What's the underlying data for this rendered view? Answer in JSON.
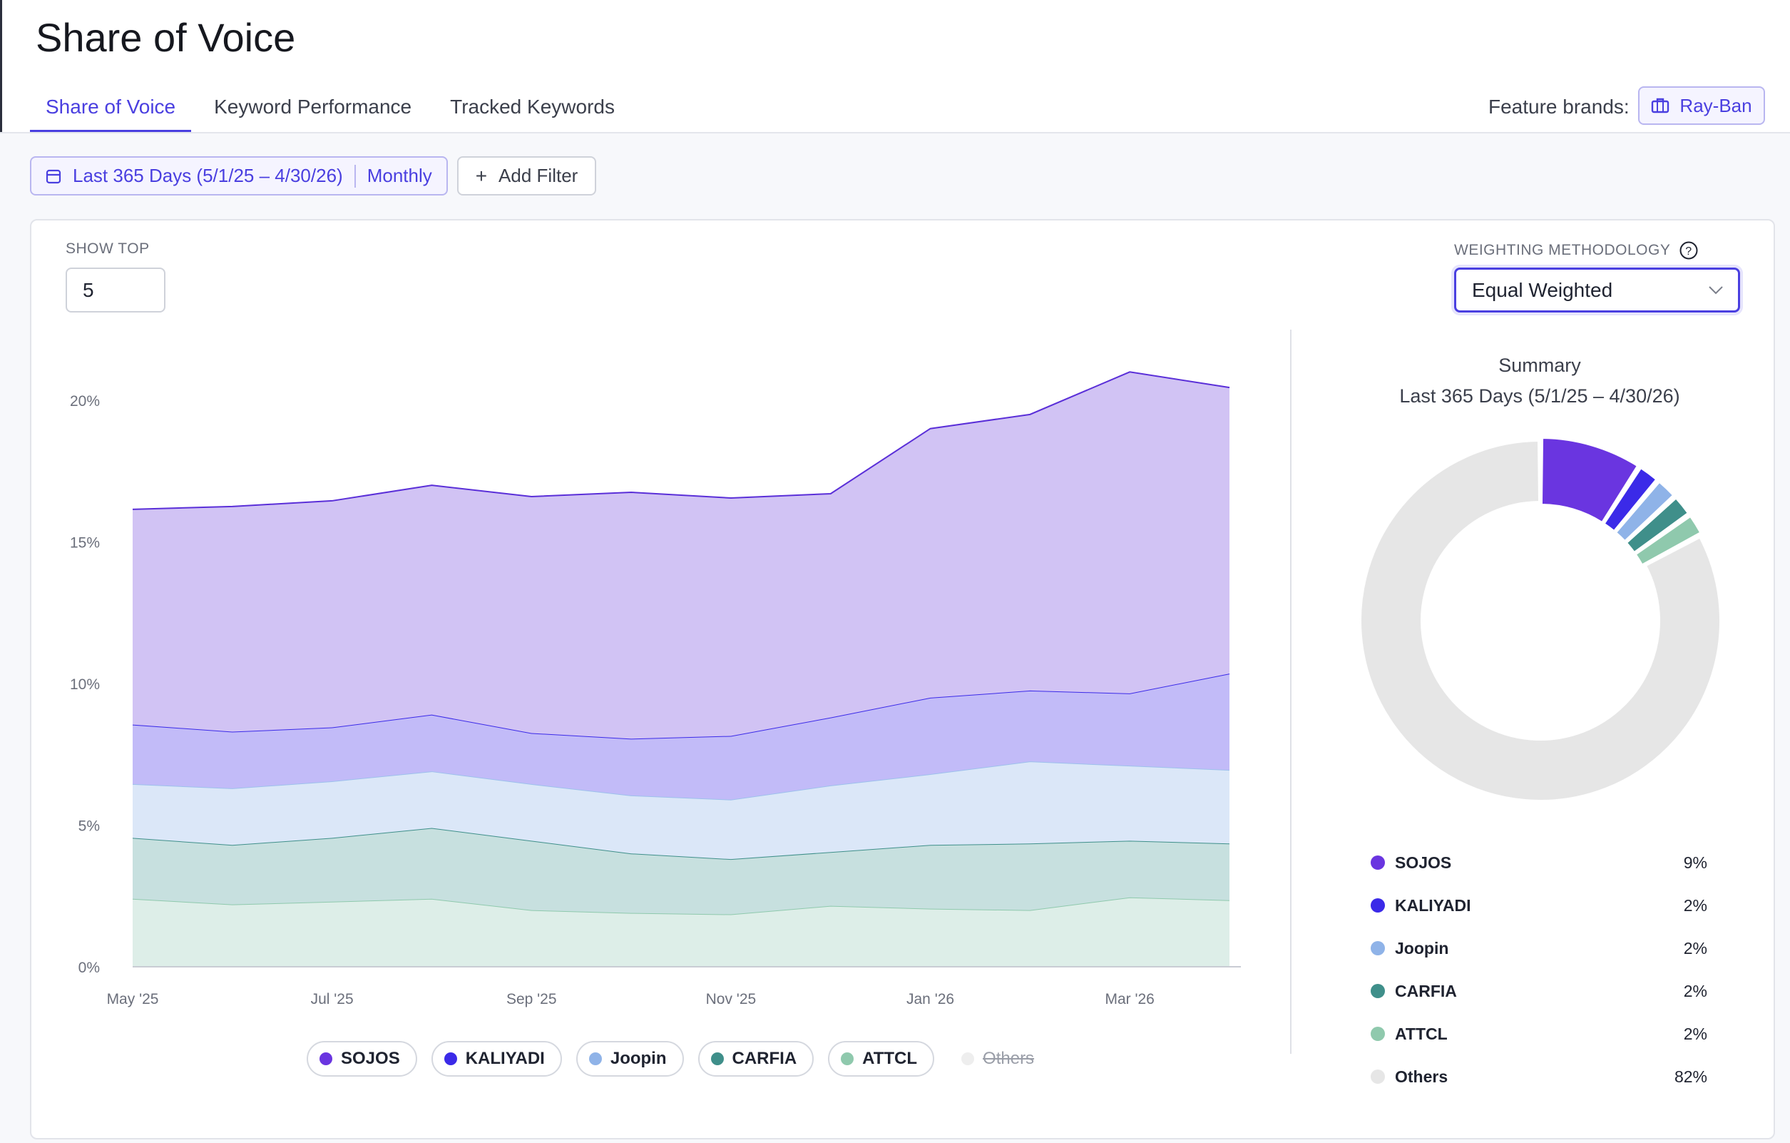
{
  "page": {
    "title": "Share of Voice"
  },
  "tabs": [
    {
      "label": "Share of Voice",
      "active": true
    },
    {
      "label": "Keyword Performance",
      "active": false
    },
    {
      "label": "Tracked Keywords",
      "active": false
    }
  ],
  "feature_brands": {
    "label": "Feature brands:",
    "brand": "Ray-Ban",
    "icon": "briefcase-icon"
  },
  "filters": {
    "date_range": "Last 365 Days (5/1/25 – 4/30/26)",
    "granularity": "Monthly",
    "add_filter": "Add Filter"
  },
  "show_top": {
    "label": "SHOW TOP",
    "value": "5"
  },
  "weighting": {
    "label": "WEIGHTING METHODOLOGY",
    "value": "Equal Weighted"
  },
  "colors": {
    "accent": "#4a3fe0",
    "SOJOS": "#6a35e0",
    "KALIYADI": "#3b2ae8",
    "Joopin": "#8fb3e8",
    "CARFIA": "#3f8f8a",
    "ATTCL": "#8fc9ad",
    "Others": "#e6e6e6"
  },
  "chart_data": [
    {
      "type": "area",
      "stacked": true,
      "x": [
        "May '25",
        "Jun '25",
        "Jul '25",
        "Aug '25",
        "Sep '25",
        "Oct '25",
        "Nov '25",
        "Dec '25",
        "Jan '26",
        "Feb '26",
        "Mar '26",
        "Apr '26"
      ],
      "x_tick_labels": [
        "May '25",
        "Jul '25",
        "Sep '25",
        "Nov '25",
        "Jan '26",
        "Mar '26"
      ],
      "y_tick_labels": [
        "0%",
        "5%",
        "10%",
        "15%",
        "20%"
      ],
      "ylim": [
        0,
        22
      ],
      "series": [
        {
          "name": "ATTCL",
          "values": [
            2.4,
            2.2,
            2.3,
            2.4,
            2.0,
            1.9,
            1.85,
            2.15,
            2.05,
            2.0,
            2.45,
            2.35
          ]
        },
        {
          "name": "CARFIA",
          "values": [
            2.15,
            2.1,
            2.25,
            2.5,
            2.45,
            2.1,
            1.95,
            1.9,
            2.25,
            2.35,
            2.0,
            2.0
          ]
        },
        {
          "name": "Joopin",
          "values": [
            1.9,
            2.0,
            2.0,
            2.0,
            2.0,
            2.05,
            2.1,
            2.35,
            2.5,
            2.9,
            2.65,
            2.6
          ]
        },
        {
          "name": "KALIYADI",
          "values": [
            2.1,
            2.0,
            1.9,
            2.0,
            1.8,
            2.0,
            2.25,
            2.4,
            2.7,
            2.5,
            2.55,
            3.4
          ]
        },
        {
          "name": "SOJOS",
          "values": [
            7.6,
            7.95,
            8.0,
            8.1,
            8.35,
            8.7,
            8.4,
            7.9,
            9.5,
            9.75,
            11.35,
            10.1
          ]
        }
      ],
      "legend": [
        "SOJOS",
        "KALIYADI",
        "Joopin",
        "CARFIA",
        "ATTCL",
        "Others"
      ],
      "legend_disabled": [
        "Others"
      ],
      "legend_position": "bottom"
    },
    {
      "type": "pie",
      "donut": true,
      "title": "Summary",
      "subtitle": "Last 365 Days (5/1/25 – 4/30/26)",
      "slices": [
        {
          "name": "SOJOS",
          "value": 9,
          "label": "9%"
        },
        {
          "name": "KALIYADI",
          "value": 2,
          "label": "2%"
        },
        {
          "name": "Joopin",
          "value": 2,
          "label": "2%"
        },
        {
          "name": "CARFIA",
          "value": 2,
          "label": "2%"
        },
        {
          "name": "ATTCL",
          "value": 2,
          "label": "2%"
        },
        {
          "name": "Others",
          "value": 82,
          "label": "82%"
        }
      ]
    }
  ]
}
